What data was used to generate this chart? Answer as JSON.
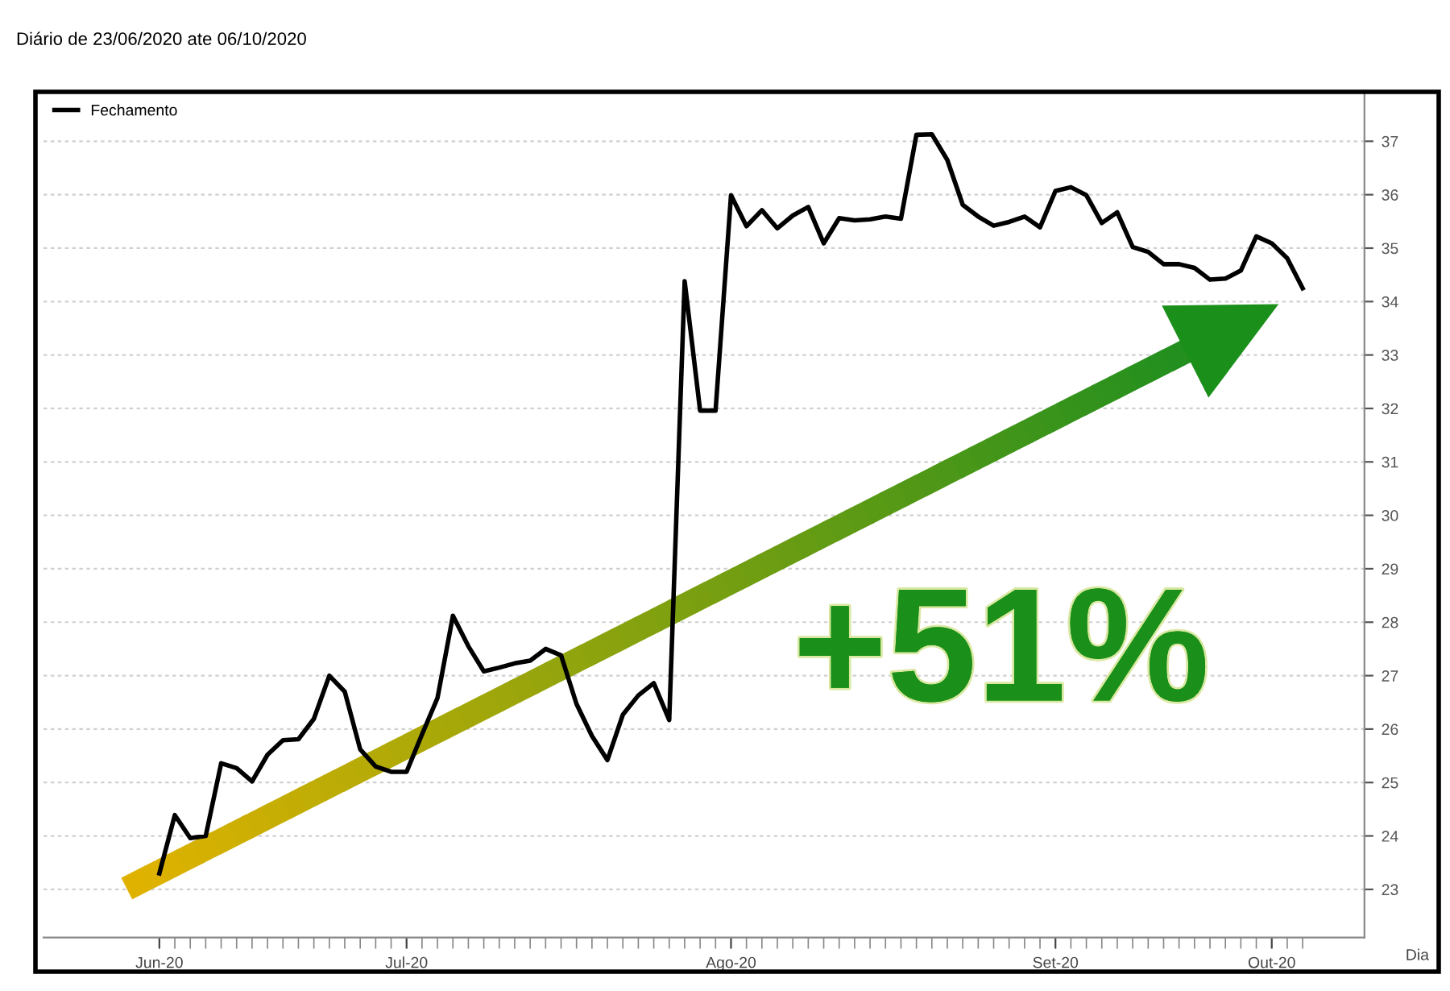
{
  "chart_data": {
    "type": "line",
    "subtitle": "Diário de 23/06/2020 ate 06/10/2020",
    "xlabel": "Dia",
    "categories": [
      "Jun-20",
      null,
      null,
      null,
      null,
      null,
      null,
      null,
      null,
      null,
      null,
      null,
      null,
      null,
      null,
      null,
      "Jul-20",
      null,
      null,
      null,
      null,
      null,
      null,
      null,
      null,
      null,
      null,
      null,
      null,
      null,
      null,
      null,
      null,
      null,
      null,
      null,
      null,
      "Ago-20",
      null,
      null,
      null,
      null,
      null,
      null,
      null,
      null,
      null,
      null,
      null,
      null,
      null,
      null,
      null,
      null,
      null,
      null,
      null,
      null,
      "Set-20",
      null,
      null,
      null,
      null,
      null,
      null,
      null,
      null,
      null,
      null,
      null,
      null,
      null,
      "Out-20",
      null,
      null
    ],
    "series": [
      {
        "name": "Fechamento",
        "color": "#000000",
        "values": [
          23.3,
          24.39,
          23.96,
          24.0,
          25.36,
          25.27,
          25.02,
          25.52,
          25.79,
          25.81,
          26.19,
          27.0,
          26.7,
          25.62,
          25.3,
          25.2,
          25.2,
          25.9,
          26.58,
          28.12,
          27.55,
          27.08,
          27.15,
          27.23,
          27.28,
          27.5,
          27.38,
          26.47,
          25.87,
          25.42,
          26.27,
          26.63,
          26.86,
          26.17,
          34.38,
          31.96,
          31.96,
          35.99,
          35.41,
          35.71,
          35.37,
          35.61,
          35.77,
          35.09,
          35.56,
          35.52,
          35.54,
          35.59,
          35.55,
          37.12,
          37.13,
          36.65,
          35.81,
          35.59,
          35.42,
          35.49,
          35.59,
          35.39,
          36.07,
          36.14,
          35.99,
          35.47,
          35.67,
          35.02,
          34.93,
          34.7,
          34.7,
          34.63,
          34.41,
          34.43,
          34.58,
          35.22,
          35.09,
          34.81,
          34.25
        ]
      }
    ],
    "ylim": [
      22.1,
      37.9
    ],
    "yticks": [
      23,
      24,
      25,
      26,
      27,
      28,
      29,
      30,
      31,
      32,
      33,
      34,
      35,
      36,
      37
    ],
    "grid": "y",
    "legend": "top left",
    "marker": "none",
    "line_style": "solid",
    "annotations": [
      "+51%"
    ]
  }
}
